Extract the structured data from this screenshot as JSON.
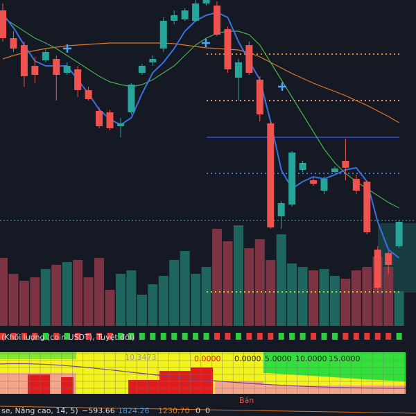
{
  "chart_data": {
    "type": "candlestick",
    "ylim": [
      80,
      500
    ],
    "up_color": "#26a69a",
    "down_color": "#ef5350",
    "candles": [
      {
        "open": 485,
        "close": 445,
        "high": 495,
        "low": 440
      },
      {
        "open": 445,
        "close": 430,
        "high": 455,
        "low": 425
      },
      {
        "open": 435,
        "close": 390,
        "high": 440,
        "low": 375
      },
      {
        "open": 405,
        "close": 392,
        "high": 418,
        "low": 380
      },
      {
        "open": 413,
        "close": 425,
        "high": 430,
        "low": 410
      },
      {
        "open": 415,
        "close": 392,
        "high": 420,
        "low": 355
      },
      {
        "open": 395,
        "close": 405,
        "high": 410,
        "low": 392
      },
      {
        "open": 400,
        "close": 370,
        "high": 405,
        "low": 360
      },
      {
        "open": 370,
        "close": 357,
        "high": 375,
        "low": 355
      },
      {
        "open": 340,
        "close": 318,
        "high": 345,
        "low": 315
      },
      {
        "open": 338,
        "close": 315,
        "high": 342,
        "low": 312
      },
      {
        "open": 318,
        "close": 322,
        "high": 330,
        "low": 302
      },
      {
        "open": 338,
        "close": 378,
        "high": 380,
        "low": 335
      },
      {
        "open": 395,
        "close": 405,
        "high": 408,
        "low": 392
      },
      {
        "open": 410,
        "close": 415,
        "high": 420,
        "low": 405
      },
      {
        "open": 430,
        "close": 470,
        "high": 475,
        "low": 425
      },
      {
        "open": 470,
        "close": 478,
        "high": 485,
        "low": 465
      },
      {
        "open": 472,
        "close": 485,
        "high": 488,
        "low": 470
      },
      {
        "open": 470,
        "close": 495,
        "high": 500,
        "low": 468
      },
      {
        "open": 495,
        "close": 500,
        "high": 500,
        "low": 492
      },
      {
        "open": 492,
        "close": 450,
        "high": 498,
        "low": 448
      },
      {
        "open": 458,
        "close": 400,
        "high": 462,
        "low": 395
      },
      {
        "open": 388,
        "close": 410,
        "high": 415,
        "low": 355
      },
      {
        "open": 435,
        "close": 395,
        "high": 440,
        "low": 392
      },
      {
        "open": 385,
        "close": 335,
        "high": 390,
        "low": 325
      },
      {
        "open": 322,
        "close": 172,
        "high": 325,
        "low": 170
      },
      {
        "open": 188,
        "close": 207,
        "high": 210,
        "low": 170
      },
      {
        "open": 205,
        "close": 280,
        "high": 282,
        "low": 202
      },
      {
        "open": 255,
        "close": 265,
        "high": 268,
        "low": 252
      },
      {
        "open": 240,
        "close": 235,
        "high": 245,
        "low": 232
      },
      {
        "open": 225,
        "close": 242,
        "high": 245,
        "low": 220
      },
      {
        "open": 252,
        "close": 257,
        "high": 260,
        "low": 250
      },
      {
        "open": 268,
        "close": 258,
        "high": 300,
        "low": 240
      },
      {
        "open": 242,
        "close": 225,
        "high": 248,
        "low": 220
      },
      {
        "open": 238,
        "close": 165,
        "high": 240,
        "low": 162
      },
      {
        "open": 140,
        "close": 85,
        "high": 145,
        "low": 82
      },
      {
        "open": 135,
        "close": 118,
        "high": 138,
        "low": 105
      },
      {
        "open": 145,
        "close": 180,
        "high": 182,
        "low": 142
      }
    ],
    "lines": [
      {
        "color": "#e07b22",
        "values": [
          415,
          420,
          424,
          427,
          430,
          432,
          434,
          435,
          436,
          437,
          438,
          438,
          438,
          438,
          438,
          438,
          437,
          435,
          433,
          431,
          430,
          429,
          428,
          424,
          418,
          410,
          402,
          394,
          387,
          380,
          374,
          368,
          362,
          355,
          348,
          340,
          332,
          323
        ]
      },
      {
        "color": "#4caf50",
        "values": [
          475,
          465,
          455,
          445,
          438,
          430,
          420,
          410,
          400,
          390,
          382,
          378,
          375,
          378,
          385,
          395,
          405,
          420,
          435,
          445,
          452,
          455,
          455,
          450,
          435,
          410,
          385,
          360,
          335,
          310,
          285,
          265,
          250,
          238,
          228,
          218,
          208,
          200
        ]
      },
      {
        "color": "#3d6fe0",
        "values": [
          480,
          460,
          435,
          412,
          405,
          405,
          405,
          385,
          365,
          342,
          328,
          320,
          330,
          365,
          395,
          410,
          430,
          455,
          470,
          478,
          482,
          475,
          440,
          412,
          385,
          325,
          255,
          228,
          238,
          245,
          242,
          248,
          255,
          258,
          238,
          180,
          140,
          128
        ]
      }
    ],
    "levels": [
      {
        "value": 422,
        "color": "#e8892e",
        "style": "dotted"
      },
      {
        "value": 355,
        "color": "#f0907a",
        "style": "dotted"
      },
      {
        "value": 302,
        "color": "#2a3fb0",
        "style": "solid"
      },
      {
        "value": 250,
        "color": "#3d7fe0",
        "style": "dotted"
      },
      {
        "value": 79,
        "color": "#b5d334",
        "style": "dotted"
      }
    ],
    "volume": {
      "ylim": [
        0,
        150
      ],
      "values": [
        98,
        75,
        65,
        70,
        82,
        88,
        92,
        95,
        70,
        98,
        52,
        75,
        80,
        45,
        60,
        72,
        95,
        108,
        75,
        85,
        140,
        122,
        145,
        112,
        125,
        95,
        132,
        90,
        85,
        80,
        82,
        72,
        68,
        80,
        85,
        100,
        85,
        50
      ],
      "up_color": "#1e655e",
      "down_color": "#7c3442"
    }
  },
  "indicator": {
    "legend": "(Khối lượng (coin USDT), Tuyệt đối)"
  },
  "heatmap": {
    "labels": [
      "10.3473",
      "0.0000",
      "0.0000",
      "5.0000",
      "10.0000",
      "15.0000"
    ]
  },
  "footer": {
    "signal": "Bán",
    "name": "se, Nâng cao, 14, 5)",
    "v1": "−593.66",
    "v2": "1824.26",
    "v3": "1230.70",
    "v4": "0",
    "v5": "0"
  }
}
